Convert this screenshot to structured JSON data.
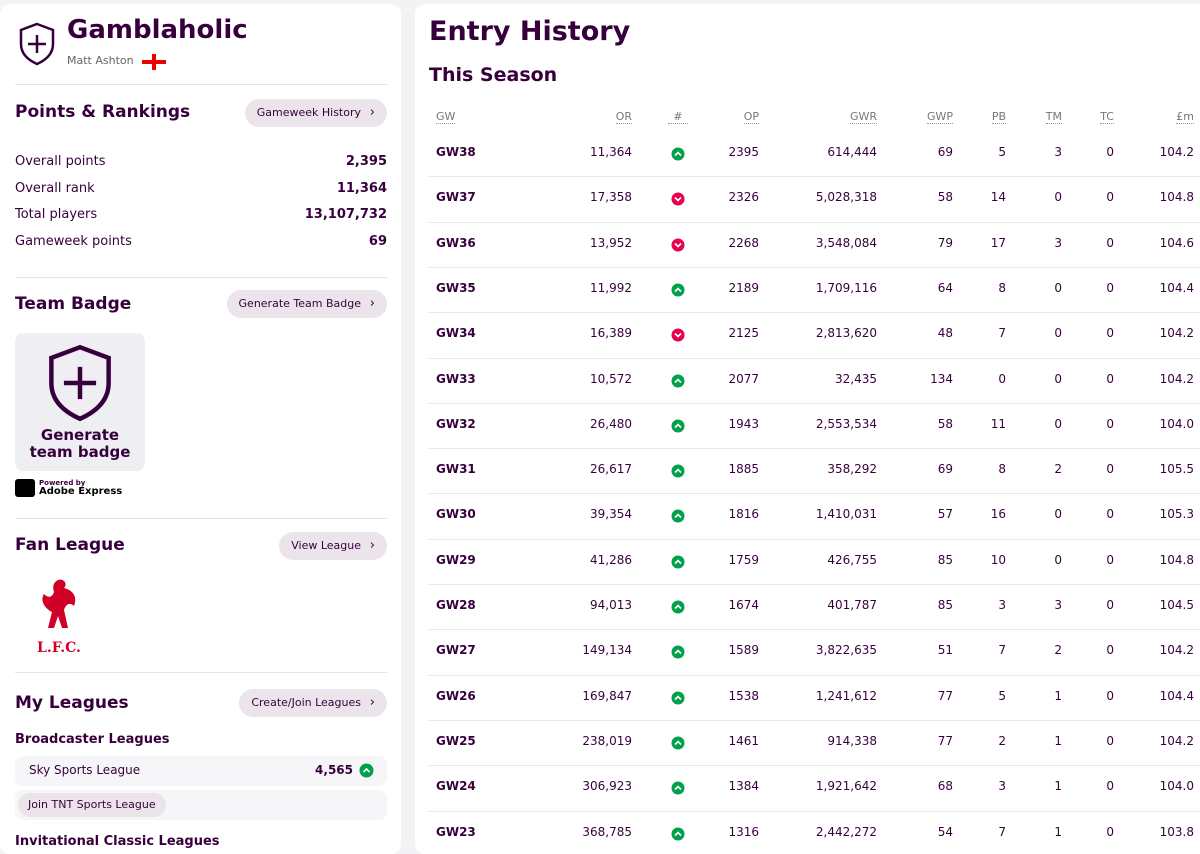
{
  "sidebar": {
    "team_name": "Gamblaholic",
    "manager": "Matt Ashton",
    "points_rankings": {
      "title": "Points & Rankings",
      "button": "Gameweek History",
      "rows": [
        [
          "Overall points",
          "2,395"
        ],
        [
          "Overall rank",
          "11,364"
        ],
        [
          "Total players",
          "13,107,732"
        ],
        [
          "Gameweek points",
          "69"
        ]
      ]
    },
    "team_badge": {
      "title": "Team Badge",
      "button": "Generate Team Badge",
      "badge_text": "Generate team badge",
      "powered_by": "Powered by",
      "brand": "Adobe Express"
    },
    "fan_league": {
      "title": "Fan League",
      "button": "View League",
      "crest_text": "L.F.C."
    },
    "my_leagues": {
      "title": "My Leagues",
      "button": "Create/Join Leagues",
      "broadcaster_title": "Broadcaster Leagues",
      "league_name": "Sky Sports League",
      "league_rank": "4,565",
      "join_button": "Join TNT Sports League",
      "invitational_title": "Invitational Classic Leagues"
    }
  },
  "main": {
    "title": "Entry History",
    "subtitle": "This Season",
    "columns": [
      "GW",
      "OR",
      "#",
      "OP",
      "GWR",
      "GWP",
      "PB",
      "TM",
      "TC",
      "£m"
    ],
    "rows": [
      {
        "cells": [
          "GW38",
          "11,364",
          "2395",
          "614,444",
          "69",
          "5",
          "3",
          "0",
          "104.2"
        ],
        "movement": "up"
      },
      {
        "cells": [
          "GW37",
          "17,358",
          "2326",
          "5,028,318",
          "58",
          "14",
          "0",
          "0",
          "104.8"
        ],
        "movement": "down"
      },
      {
        "cells": [
          "GW36",
          "13,952",
          "2268",
          "3,548,084",
          "79",
          "17",
          "3",
          "0",
          "104.6"
        ],
        "movement": "down"
      },
      {
        "cells": [
          "GW35",
          "11,992",
          "2189",
          "1,709,116",
          "64",
          "8",
          "0",
          "0",
          "104.4"
        ],
        "movement": "up"
      },
      {
        "cells": [
          "GW34",
          "16,389",
          "2125",
          "2,813,620",
          "48",
          "7",
          "0",
          "0",
          "104.2"
        ],
        "movement": "down"
      },
      {
        "cells": [
          "GW33",
          "10,572",
          "2077",
          "32,435",
          "134",
          "0",
          "0",
          "0",
          "104.2"
        ],
        "movement": "up"
      },
      {
        "cells": [
          "GW32",
          "26,480",
          "1943",
          "2,553,534",
          "58",
          "11",
          "0",
          "0",
          "104.0"
        ],
        "movement": "up"
      },
      {
        "cells": [
          "GW31",
          "26,617",
          "1885",
          "358,292",
          "69",
          "8",
          "2",
          "0",
          "105.5"
        ],
        "movement": "up"
      },
      {
        "cells": [
          "GW30",
          "39,354",
          "1816",
          "1,410,031",
          "57",
          "16",
          "0",
          "0",
          "105.3"
        ],
        "movement": "up"
      },
      {
        "cells": [
          "GW29",
          "41,286",
          "1759",
          "426,755",
          "85",
          "10",
          "0",
          "0",
          "104.8"
        ],
        "movement": "up"
      },
      {
        "cells": [
          "GW28",
          "94,013",
          "1674",
          "401,787",
          "85",
          "3",
          "3",
          "0",
          "104.5"
        ],
        "movement": "up"
      },
      {
        "cells": [
          "GW27",
          "149,134",
          "1589",
          "3,822,635",
          "51",
          "7",
          "2",
          "0",
          "104.2"
        ],
        "movement": "up"
      },
      {
        "cells": [
          "GW26",
          "169,847",
          "1538",
          "1,241,612",
          "77",
          "5",
          "1",
          "0",
          "104.4"
        ],
        "movement": "up"
      },
      {
        "cells": [
          "GW25",
          "238,019",
          "1461",
          "914,338",
          "77",
          "2",
          "1",
          "0",
          "104.2"
        ],
        "movement": "up"
      },
      {
        "cells": [
          "GW24",
          "306,923",
          "1384",
          "1,921,642",
          "68",
          "3",
          "1",
          "0",
          "104.0"
        ],
        "movement": "up"
      },
      {
        "cells": [
          "GW23",
          "368,785",
          "1316",
          "2,442,272",
          "54",
          "7",
          "1",
          "0",
          "103.8"
        ],
        "movement": "up"
      }
    ]
  }
}
